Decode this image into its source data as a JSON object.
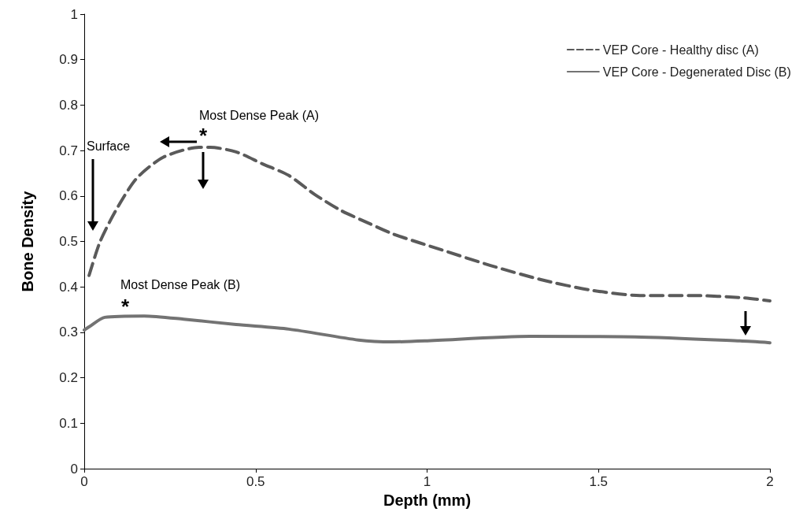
{
  "chart_data": {
    "type": "line",
    "xlabel": "Depth (mm)",
    "ylabel": "Bone Density",
    "xlim": [
      0,
      2
    ],
    "xticks": [
      0,
      0.5,
      1,
      1.5,
      2
    ],
    "ylim": [
      0,
      1
    ],
    "yticks": [
      0,
      0.1,
      0.2,
      0.3,
      0.4,
      0.5,
      0.6,
      0.7,
      0.8,
      0.9,
      1
    ],
    "grid": false,
    "legend": "top right",
    "marker": "none",
    "series": [
      {
        "name": "VEP Core - Healthy disc (A)",
        "color": "#5a5a5a",
        "line_style": "dashed",
        "x": [
          0.014,
          0.046,
          0.092,
          0.152,
          0.23,
          0.335,
          0.367,
          0.443,
          0.519,
          0.597,
          0.673,
          0.749,
          0.827,
          0.902,
          0.978,
          1.04,
          1.185,
          1.332,
          1.476,
          1.621,
          1.775,
          1.92,
          2.0
        ],
        "values": [
          0.425,
          0.499,
          0.568,
          0.638,
          0.685,
          0.707,
          0.707,
          0.697,
          0.671,
          0.645,
          0.603,
          0.568,
          0.541,
          0.516,
          0.497,
          0.482,
          0.447,
          0.416,
          0.393,
          0.381,
          0.381,
          0.376,
          0.369
        ]
      },
      {
        "name": "VEP Core - Degenerated Disc (B)",
        "color": "#737373",
        "line_style": "solid",
        "x": [
          0.0,
          0.014,
          0.06,
          0.175,
          0.29,
          0.443,
          0.597,
          0.8,
          0.9,
          0.994,
          1.3,
          1.607,
          1.913,
          2.0
        ],
        "values": [
          0.305,
          0.312,
          0.333,
          0.336,
          0.329,
          0.317,
          0.307,
          0.283,
          0.279,
          0.281,
          0.291,
          0.29,
          0.281,
          0.277
        ]
      }
    ],
    "annotations": [
      "Most Dense Peak (A)",
      "*",
      "Surface",
      "Most Dense Peak (B)",
      "*"
    ]
  }
}
